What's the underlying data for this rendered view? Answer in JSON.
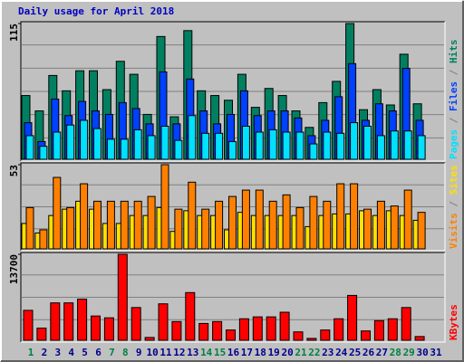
{
  "chart_data": [
    {
      "type": "bar",
      "title": "Daily usage for April 2018",
      "title_color": "#0000c0",
      "ylim": [
        0,
        115
      ],
      "yticks": [
        115
      ],
      "legend_separator": " / ",
      "series": [
        {
          "name": "Hits",
          "color": "#008060",
          "values": [
            54,
            41,
            71,
            58,
            75,
            75,
            59,
            83,
            72,
            38,
            104,
            36,
            109,
            58,
            54,
            50,
            72,
            44,
            60,
            54,
            41,
            27,
            48,
            66,
            115,
            42,
            59,
            46,
            89,
            47,
            0
          ]
        },
        {
          "name": "Files",
          "color": "#0040ff",
          "values": [
            31,
            15,
            51,
            37,
            49,
            41,
            38,
            48,
            43,
            30,
            74,
            30,
            68,
            41,
            30,
            38,
            58,
            37,
            41,
            41,
            35,
            20,
            33,
            53,
            81,
            33,
            47,
            41,
            77,
            33,
            0
          ]
        },
        {
          "name": "Pages",
          "color": "#00e0ff",
          "values": [
            20,
            11,
            23,
            29,
            33,
            26,
            17,
            17,
            25,
            20,
            28,
            16,
            37,
            22,
            22,
            15,
            28,
            23,
            25,
            23,
            23,
            13,
            23,
            22,
            31,
            28,
            20,
            24,
            24,
            20,
            0
          ]
        }
      ]
    },
    {
      "type": "bar",
      "ylim": [
        0,
        53
      ],
      "yticks": [
        53
      ],
      "legend_separator": " / ",
      "series": [
        {
          "name": "Sites",
          "color": "#ffe000",
          "values": [
            16,
            10,
            21,
            25,
            30,
            25,
            16,
            16,
            21,
            21,
            26,
            11,
            24,
            21,
            21,
            12,
            23,
            21,
            21,
            21,
            21,
            14,
            21,
            22,
            22,
            24,
            21,
            24,
            21,
            18,
            0
          ]
        },
        {
          "name": "Visits",
          "color": "#ff8000",
          "values": [
            26,
            12,
            45,
            26,
            41,
            30,
            30,
            30,
            30,
            33,
            53,
            25,
            42,
            25,
            30,
            33,
            37,
            37,
            30,
            34,
            26,
            33,
            30,
            41,
            41,
            25,
            30,
            27,
            37,
            23,
            0
          ]
        }
      ]
    },
    {
      "type": "bar",
      "ylim": [
        0,
        13700
      ],
      "yticks": [
        13700
      ],
      "categories": [
        "1",
        "2",
        "3",
        "4",
        "5",
        "6",
        "7",
        "8",
        "9",
        "10",
        "11",
        "12",
        "13",
        "14",
        "15",
        "16",
        "17",
        "18",
        "19",
        "20",
        "21",
        "22",
        "23",
        "24",
        "25",
        "26",
        "27",
        "28",
        "29",
        "30",
        "31"
      ],
      "category_colors": [
        "#008040",
        "#00008b",
        "#00008b",
        "#00008b",
        "#00008b",
        "#00008b",
        "#008040",
        "#008040",
        "#00008b",
        "#00008b",
        "#00008b",
        "#00008b",
        "#00008b",
        "#008040",
        "#008040",
        "#00008b",
        "#00008b",
        "#00008b",
        "#00008b",
        "#00008b",
        "#008040",
        "#008040",
        "#00008b",
        "#00008b",
        "#00008b",
        "#00008b",
        "#00008b",
        "#008040",
        "#008040",
        "#00008b",
        "#00008b"
      ],
      "series": [
        {
          "name": "KBytes",
          "color": "#ff0000",
          "values": [
            4770,
            1940,
            5960,
            5960,
            6560,
            3870,
            3580,
            13700,
            5220,
            450,
            5810,
            2980,
            7600,
            2680,
            2980,
            1640,
            3430,
            3730,
            3730,
            4470,
            1340,
            300,
            1640,
            3430,
            7150,
            1490,
            3130,
            3430,
            5220,
            600,
            0
          ]
        }
      ]
    }
  ]
}
